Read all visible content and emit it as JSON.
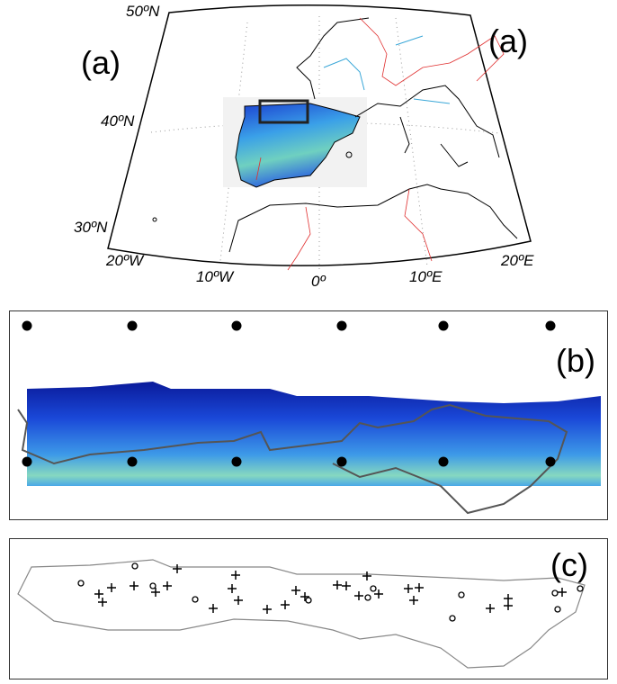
{
  "panel_a": {
    "labels": [
      "(a)",
      "(a)"
    ],
    "lat_labels": [
      "50ºN",
      "40ºN",
      "30ºN"
    ],
    "lon_labels": [
      "20ºW",
      "10ºW",
      "0º",
      "10ºE",
      "20ºE"
    ]
  },
  "panel_b": {
    "label": "(b)"
  },
  "panel_c": {
    "label": "(c)"
  }
}
